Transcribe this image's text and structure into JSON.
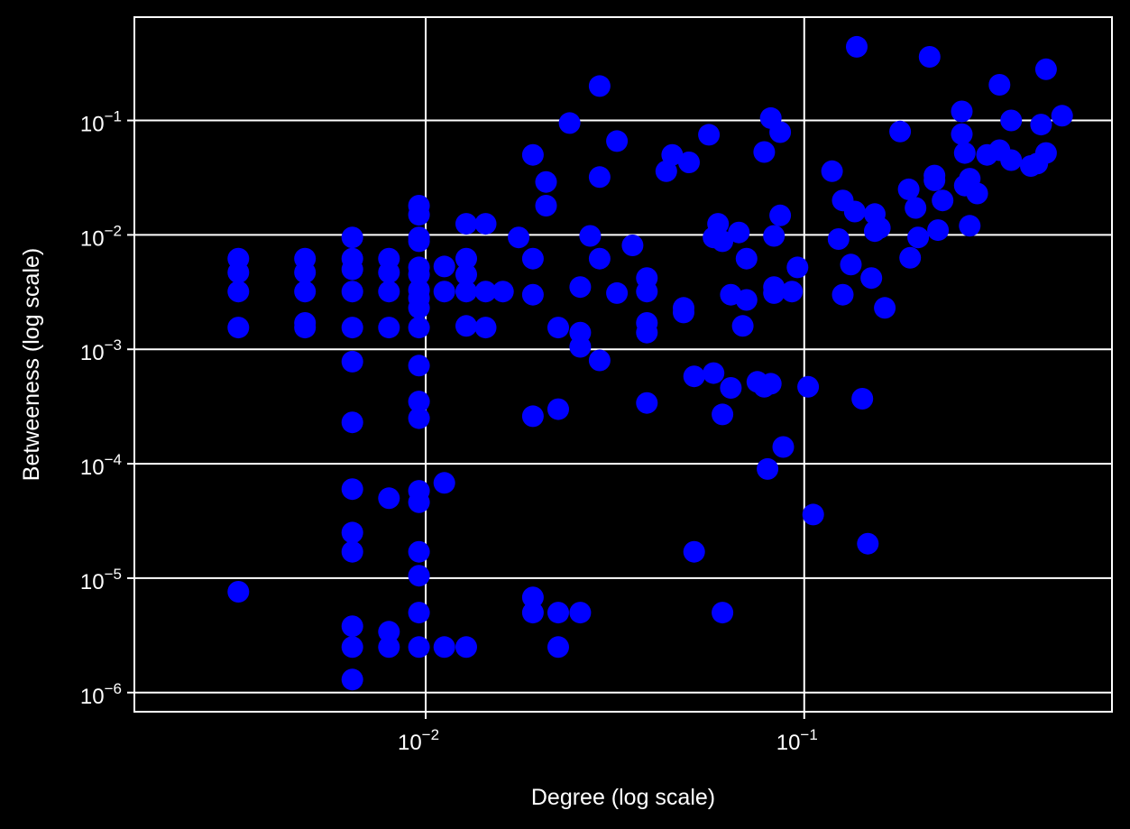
{
  "chart_data": {
    "type": "scatter",
    "title": "",
    "xlabel": "Degree (log scale)",
    "ylabel": "Betweeness (log scale)",
    "xscale": "log",
    "yscale": "log",
    "xlim": [
      0.0017,
      0.65
    ],
    "ylim": [
      6.8e-07,
      0.8
    ],
    "grid": true,
    "marker_color": "#0000ff",
    "background": "#000000",
    "foreground": "#ffffff",
    "x_ticks": [
      {
        "base": "10",
        "exp": "−2",
        "value": 0.01
      },
      {
        "base": "10",
        "exp": "−1",
        "value": 0.1
      }
    ],
    "y_ticks": [
      {
        "base": "10",
        "exp": "−6",
        "value": 1e-06
      },
      {
        "base": "10",
        "exp": "−5",
        "value": 1e-05
      },
      {
        "base": "10",
        "exp": "−4",
        "value": 0.0001
      },
      {
        "base": "10",
        "exp": "−3",
        "value": 0.001
      },
      {
        "base": "10",
        "exp": "−2",
        "value": 0.01
      },
      {
        "base": "10",
        "exp": "−1",
        "value": 0.1
      }
    ],
    "points": [
      {
        "x": 0.0032,
        "y": 0.0062
      },
      {
        "x": 0.0032,
        "y": 0.0047
      },
      {
        "x": 0.0032,
        "y": 0.0032
      },
      {
        "x": 0.0032,
        "y": 0.00155
      },
      {
        "x": 0.0032,
        "y": 7.6e-06
      },
      {
        "x": 0.0048,
        "y": 0.0062
      },
      {
        "x": 0.0048,
        "y": 0.0047
      },
      {
        "x": 0.0048,
        "y": 0.0032
      },
      {
        "x": 0.0048,
        "y": 0.0017
      },
      {
        "x": 0.0048,
        "y": 0.00155
      },
      {
        "x": 0.0064,
        "y": 0.0095
      },
      {
        "x": 0.0064,
        "y": 0.0062
      },
      {
        "x": 0.0064,
        "y": 0.005
      },
      {
        "x": 0.0064,
        "y": 0.0032
      },
      {
        "x": 0.0064,
        "y": 0.00155
      },
      {
        "x": 0.0064,
        "y": 0.00078
      },
      {
        "x": 0.0064,
        "y": 0.00023
      },
      {
        "x": 0.0064,
        "y": 6e-05
      },
      {
        "x": 0.0064,
        "y": 2.5e-05
      },
      {
        "x": 0.0064,
        "y": 1.7e-05
      },
      {
        "x": 0.0064,
        "y": 3.8e-06
      },
      {
        "x": 0.0064,
        "y": 2.5e-06
      },
      {
        "x": 0.0064,
        "y": 1.3e-06
      },
      {
        "x": 0.008,
        "y": 0.0062
      },
      {
        "x": 0.008,
        "y": 0.0047
      },
      {
        "x": 0.008,
        "y": 0.0032
      },
      {
        "x": 0.008,
        "y": 0.00155
      },
      {
        "x": 0.008,
        "y": 5e-05
      },
      {
        "x": 0.008,
        "y": 3.4e-06
      },
      {
        "x": 0.008,
        "y": 2.5e-06
      },
      {
        "x": 0.0096,
        "y": 0.018
      },
      {
        "x": 0.0096,
        "y": 0.015
      },
      {
        "x": 0.0096,
        "y": 0.0095
      },
      {
        "x": 0.0096,
        "y": 0.0088
      },
      {
        "x": 0.0096,
        "y": 0.0052
      },
      {
        "x": 0.0096,
        "y": 0.0045
      },
      {
        "x": 0.0096,
        "y": 0.0033
      },
      {
        "x": 0.0096,
        "y": 0.0028
      },
      {
        "x": 0.0096,
        "y": 0.0023
      },
      {
        "x": 0.0096,
        "y": 0.00155
      },
      {
        "x": 0.0096,
        "y": 0.00072
      },
      {
        "x": 0.0096,
        "y": 0.00035
      },
      {
        "x": 0.0096,
        "y": 0.00025
      },
      {
        "x": 0.0096,
        "y": 5.8e-05
      },
      {
        "x": 0.0096,
        "y": 4.6e-05
      },
      {
        "x": 0.0096,
        "y": 1.7e-05
      },
      {
        "x": 0.0096,
        "y": 1.05e-05
      },
      {
        "x": 0.0096,
        "y": 5e-06
      },
      {
        "x": 0.0096,
        "y": 2.5e-06
      },
      {
        "x": 0.0112,
        "y": 0.0053
      },
      {
        "x": 0.0112,
        "y": 0.0032
      },
      {
        "x": 0.0112,
        "y": 6.8e-05
      },
      {
        "x": 0.0112,
        "y": 2.5e-06
      },
      {
        "x": 0.0128,
        "y": 0.0125
      },
      {
        "x": 0.0128,
        "y": 0.0062
      },
      {
        "x": 0.0128,
        "y": 0.0045
      },
      {
        "x": 0.0128,
        "y": 0.0032
      },
      {
        "x": 0.0128,
        "y": 0.0016
      },
      {
        "x": 0.0128,
        "y": 2.5e-06
      },
      {
        "x": 0.0144,
        "y": 0.0125
      },
      {
        "x": 0.0144,
        "y": 0.0032
      },
      {
        "x": 0.0144,
        "y": 0.00155
      },
      {
        "x": 0.016,
        "y": 0.0032
      },
      {
        "x": 0.0176,
        "y": 0.0095
      },
      {
        "x": 0.0192,
        "y": 0.05
      },
      {
        "x": 0.0192,
        "y": 0.0062
      },
      {
        "x": 0.0192,
        "y": 0.003
      },
      {
        "x": 0.0192,
        "y": 0.00026
      },
      {
        "x": 0.0192,
        "y": 6.8e-06
      },
      {
        "x": 0.0192,
        "y": 5e-06
      },
      {
        "x": 0.0208,
        "y": 0.029
      },
      {
        "x": 0.0208,
        "y": 0.018
      },
      {
        "x": 0.0224,
        "y": 0.00155
      },
      {
        "x": 0.0224,
        "y": 0.0003
      },
      {
        "x": 0.0224,
        "y": 5e-06
      },
      {
        "x": 0.0224,
        "y": 2.5e-06
      },
      {
        "x": 0.024,
        "y": 0.095
      },
      {
        "x": 0.0256,
        "y": 0.0035
      },
      {
        "x": 0.0256,
        "y": 0.0014
      },
      {
        "x": 0.0256,
        "y": 0.00105
      },
      {
        "x": 0.0256,
        "y": 5e-06
      },
      {
        "x": 0.0272,
        "y": 0.0098
      },
      {
        "x": 0.0288,
        "y": 0.2
      },
      {
        "x": 0.0288,
        "y": 0.032
      },
      {
        "x": 0.0288,
        "y": 0.0062
      },
      {
        "x": 0.0288,
        "y": 0.0008
      },
      {
        "x": 0.032,
        "y": 0.066
      },
      {
        "x": 0.032,
        "y": 0.0031
      },
      {
        "x": 0.0352,
        "y": 0.0081
      },
      {
        "x": 0.0384,
        "y": 0.0042
      },
      {
        "x": 0.0384,
        "y": 0.0032
      },
      {
        "x": 0.0384,
        "y": 0.0017
      },
      {
        "x": 0.0384,
        "y": 0.0014
      },
      {
        "x": 0.0384,
        "y": 0.00034
      },
      {
        "x": 0.0432,
        "y": 0.036
      },
      {
        "x": 0.0448,
        "y": 0.05
      },
      {
        "x": 0.048,
        "y": 0.0023
      },
      {
        "x": 0.048,
        "y": 0.0021
      },
      {
        "x": 0.0496,
        "y": 0.043
      },
      {
        "x": 0.0512,
        "y": 0.00058
      },
      {
        "x": 0.0512,
        "y": 1.7e-05
      },
      {
        "x": 0.056,
        "y": 0.075
      },
      {
        "x": 0.0576,
        "y": 0.0095
      },
      {
        "x": 0.0576,
        "y": 0.00062
      },
      {
        "x": 0.0592,
        "y": 0.0125
      },
      {
        "x": 0.0608,
        "y": 0.0088
      },
      {
        "x": 0.0608,
        "y": 0.00027
      },
      {
        "x": 0.0608,
        "y": 5e-06
      },
      {
        "x": 0.064,
        "y": 0.003
      },
      {
        "x": 0.064,
        "y": 0.00046
      },
      {
        "x": 0.0672,
        "y": 0.0105
      },
      {
        "x": 0.0688,
        "y": 0.0016
      },
      {
        "x": 0.0704,
        "y": 0.0062
      },
      {
        "x": 0.0704,
        "y": 0.0027
      },
      {
        "x": 0.0752,
        "y": 0.00052
      },
      {
        "x": 0.0784,
        "y": 0.053
      },
      {
        "x": 0.0784,
        "y": 0.00047
      },
      {
        "x": 0.08,
        "y": 9e-05
      },
      {
        "x": 0.0816,
        "y": 0.105
      },
      {
        "x": 0.0816,
        "y": 0.0005
      },
      {
        "x": 0.0832,
        "y": 0.0098
      },
      {
        "x": 0.0832,
        "y": 0.0035
      },
      {
        "x": 0.0832,
        "y": 0.0031
      },
      {
        "x": 0.0864,
        "y": 0.079
      },
      {
        "x": 0.0864,
        "y": 0.0148
      },
      {
        "x": 0.088,
        "y": 0.00014
      },
      {
        "x": 0.0928,
        "y": 0.0032
      },
      {
        "x": 0.096,
        "y": 0.0052
      },
      {
        "x": 0.1024,
        "y": 0.00047
      },
      {
        "x": 0.1056,
        "y": 3.6e-05
      },
      {
        "x": 0.1184,
        "y": 0.036
      },
      {
        "x": 0.1232,
        "y": 0.0092
      },
      {
        "x": 0.1264,
        "y": 0.02
      },
      {
        "x": 0.1264,
        "y": 0.003
      },
      {
        "x": 0.1328,
        "y": 0.0055
      },
      {
        "x": 0.136,
        "y": 0.016
      },
      {
        "x": 0.1376,
        "y": 0.44
      },
      {
        "x": 0.1424,
        "y": 0.00037
      },
      {
        "x": 0.1472,
        "y": 2e-05
      },
      {
        "x": 0.1504,
        "y": 0.0042
      },
      {
        "x": 0.1536,
        "y": 0.0152
      },
      {
        "x": 0.1536,
        "y": 0.0108
      },
      {
        "x": 0.1584,
        "y": 0.0115
      },
      {
        "x": 0.1632,
        "y": 0.0023
      },
      {
        "x": 0.1792,
        "y": 0.08
      },
      {
        "x": 0.1888,
        "y": 0.025
      },
      {
        "x": 0.1904,
        "y": 0.0063
      },
      {
        "x": 0.1968,
        "y": 0.0172
      },
      {
        "x": 0.2,
        "y": 0.0095
      },
      {
        "x": 0.2144,
        "y": 0.36
      },
      {
        "x": 0.2208,
        "y": 0.033
      },
      {
        "x": 0.2208,
        "y": 0.03
      },
      {
        "x": 0.2256,
        "y": 0.011
      },
      {
        "x": 0.232,
        "y": 0.02
      },
      {
        "x": 0.2608,
        "y": 0.12
      },
      {
        "x": 0.2608,
        "y": 0.076
      },
      {
        "x": 0.2656,
        "y": 0.052
      },
      {
        "x": 0.2656,
        "y": 0.027
      },
      {
        "x": 0.2736,
        "y": 0.031
      },
      {
        "x": 0.2736,
        "y": 0.012
      },
      {
        "x": 0.2864,
        "y": 0.023
      },
      {
        "x": 0.304,
        "y": 0.05
      },
      {
        "x": 0.328,
        "y": 0.205
      },
      {
        "x": 0.328,
        "y": 0.055
      },
      {
        "x": 0.352,
        "y": 0.1
      },
      {
        "x": 0.352,
        "y": 0.045
      },
      {
        "x": 0.3968,
        "y": 0.04
      },
      {
        "x": 0.4128,
        "y": 0.042
      },
      {
        "x": 0.4224,
        "y": 0.092
      },
      {
        "x": 0.4352,
        "y": 0.28
      },
      {
        "x": 0.4352,
        "y": 0.052
      },
      {
        "x": 0.48,
        "y": 0.11
      }
    ]
  }
}
